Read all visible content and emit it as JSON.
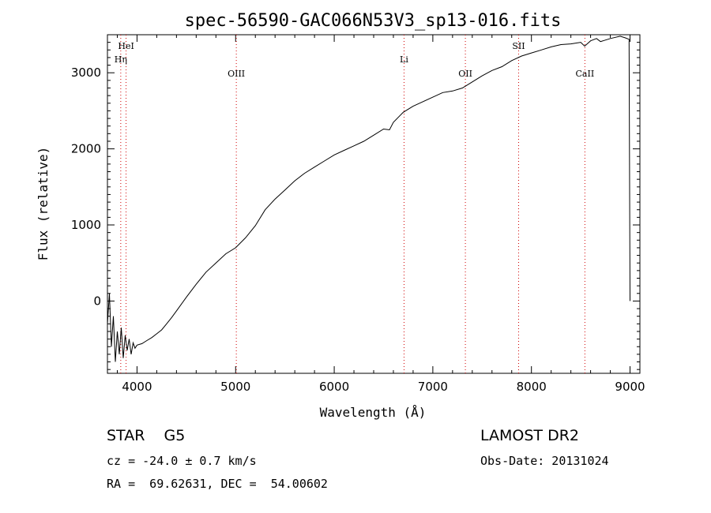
{
  "chart_data": {
    "type": "line",
    "title": "spec-56590-GAC066N53V3_sp13-016.fits",
    "xlabel": "Wavelength (Å)",
    "ylabel": "Flux (relative)",
    "xlim": [
      3700,
      9100
    ],
    "ylim": [
      -950,
      3500
    ],
    "x_ticks": [
      4000,
      5000,
      6000,
      7000,
      8000,
      9000
    ],
    "y_ticks": [
      0,
      1000,
      2000,
      3000
    ],
    "grid": false,
    "series": [
      {
        "x": [
          3700,
          3720,
          3740,
          3760,
          3780,
          3800,
          3820,
          3840,
          3860,
          3880,
          3900,
          3920,
          3940,
          3960,
          3980,
          4000,
          4050,
          4100,
          4150,
          4200,
          4250,
          4300,
          4350,
          4400,
          4500,
          4600,
          4700,
          4800,
          4900,
          5000,
          5100,
          5200,
          5300,
          5400,
          5500,
          5600,
          5700,
          5800,
          5900,
          6000,
          6100,
          6200,
          6300,
          6400,
          6500,
          6560,
          6600,
          6700,
          6800,
          6900,
          7000,
          7100,
          7200,
          7300,
          7400,
          7500,
          7600,
          7700,
          7800,
          7900,
          8000,
          8100,
          8200,
          8300,
          8400,
          8500,
          8540,
          8600,
          8660,
          8700,
          8800,
          8900,
          8950,
          8990,
          9000
        ],
        "y": [
          -300,
          100,
          -600,
          -200,
          -800,
          -400,
          -700,
          -350,
          -750,
          -450,
          -650,
          -500,
          -700,
          -550,
          -620,
          -580,
          -560,
          -520,
          -480,
          -430,
          -380,
          -300,
          -220,
          -130,
          50,
          220,
          380,
          500,
          620,
          700,
          830,
          990,
          1200,
          1340,
          1460,
          1580,
          1680,
          1760,
          1840,
          1920,
          1980,
          2040,
          2100,
          2180,
          2260,
          2250,
          2350,
          2480,
          2560,
          2620,
          2680,
          2740,
          2760,
          2800,
          2880,
          2960,
          3030,
          3080,
          3160,
          3220,
          3260,
          3300,
          3340,
          3370,
          3380,
          3400,
          3350,
          3420,
          3450,
          3410,
          3450,
          3480,
          3460,
          3440,
          0
        ]
      }
    ],
    "lines": [
      {
        "label": "HeI",
        "x": 3889,
        "row": 1
      },
      {
        "label": "Hη",
        "x": 3835,
        "row": 2
      },
      {
        "label": "OIII",
        "x": 5007,
        "row": 3
      },
      {
        "label": "Li",
        "x": 6708,
        "row": 2
      },
      {
        "label": "OII",
        "x": 7330,
        "row": 3
      },
      {
        "label": "SII",
        "x": 7870,
        "row": 1
      },
      {
        "label": "CaII",
        "x": 8542,
        "row": 3
      }
    ],
    "line_color": "#d00000"
  },
  "info": {
    "object": "STAR    G5",
    "survey": "LAMOST DR2",
    "cz": "cz = -24.0 ± 0.7 km/s",
    "obs_date": "Obs-Date: 20131024",
    "radec": "RA =  69.62631, DEC =  54.00602"
  }
}
